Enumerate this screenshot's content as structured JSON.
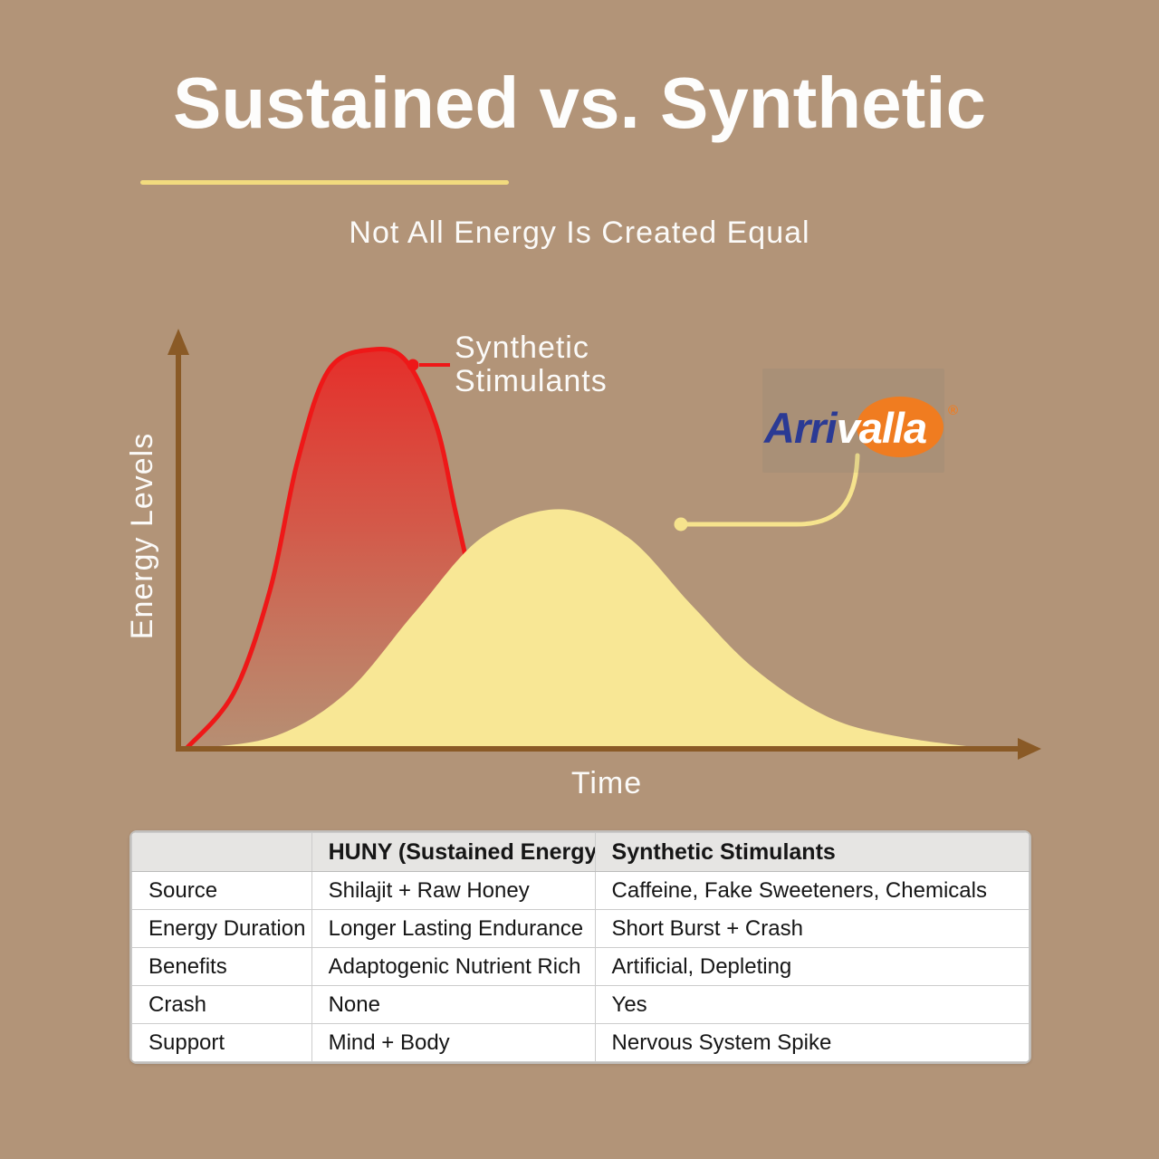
{
  "header": {
    "title": "Sustained vs. Synthetic",
    "subtitle": "Not All Energy Is Created Equal"
  },
  "chart": {
    "y_axis_label": "Energy Levels",
    "x_axis_label": "Time",
    "synthetic_callout_label": "Synthetic Stimulants"
  },
  "logo": {
    "part1": "Arri",
    "part2": "valla",
    "mark": "®"
  },
  "colors": {
    "background": "#b29478",
    "axis_brown": "#8a5a26",
    "red_stroke": "#ee1818",
    "yellow_fill": "#f8e795",
    "callout_yellow": "#f6e38d",
    "underline_yellow": "#f2db7e",
    "logo_blue": "#2b3a94",
    "logo_orange": "#f07c20",
    "table_header_bg": "#e6e5e3"
  },
  "table": {
    "header": {
      "feature": "",
      "huny": "HUNY (Sustained Energy)",
      "synthetic": "Synthetic Stimulants"
    },
    "rows": [
      {
        "label": "Source",
        "huny": "Shilajit + Raw Honey",
        "synthetic": "Caffeine, Fake Sweeteners, Chemicals"
      },
      {
        "label": "Energy Duration",
        "huny": "Longer Lasting Endurance",
        "synthetic": "Short Burst + Crash"
      },
      {
        "label": "Benefits",
        "huny": "Adaptogenic Nutrient Rich",
        "synthetic": "Artificial, Depleting"
      },
      {
        "label": "Crash",
        "huny": "None",
        "synthetic": "Yes"
      },
      {
        "label": "Support",
        "huny": "Mind + Body",
        "synthetic": "Nervous System Spike"
      }
    ]
  },
  "chart_data": {
    "type": "area",
    "title": "Sustained vs. Synthetic",
    "xlabel": "Time",
    "ylabel": "Energy Levels",
    "axis_ticks": "none (conceptual curves)",
    "legend_position": "inline callouts",
    "series": [
      {
        "name": "Synthetic Stimulants",
        "color": "#ee1818",
        "style": "red gradient fill, sharp early spike then crash",
        "points_pct": [
          [
            0.9,
            0
          ],
          [
            6.5,
            14
          ],
          [
            10.8,
            40
          ],
          [
            14.0,
            72
          ],
          [
            17.7,
            95
          ],
          [
            22.9,
            100
          ],
          [
            26.8,
            97
          ],
          [
            30.3,
            81
          ],
          [
            32.5,
            60
          ],
          [
            34.6,
            40
          ],
          [
            36.8,
            19
          ],
          [
            38.7,
            0
          ]
        ]
      },
      {
        "name": "HUNY (Sustained Energy) — Arrivalla",
        "color": "#f8e795",
        "style": "solid pale-yellow fill, broad sustained dome",
        "points_pct": [
          [
            0.9,
            0
          ],
          [
            11.1,
            3
          ],
          [
            19.7,
            14
          ],
          [
            27.7,
            34
          ],
          [
            35.7,
            53
          ],
          [
            44.7,
            60
          ],
          [
            52.8,
            53
          ],
          [
            60.3,
            36
          ],
          [
            67.7,
            20
          ],
          [
            76.3,
            8
          ],
          [
            84.8,
            3
          ],
          [
            95.4,
            0
          ]
        ]
      }
    ]
  }
}
